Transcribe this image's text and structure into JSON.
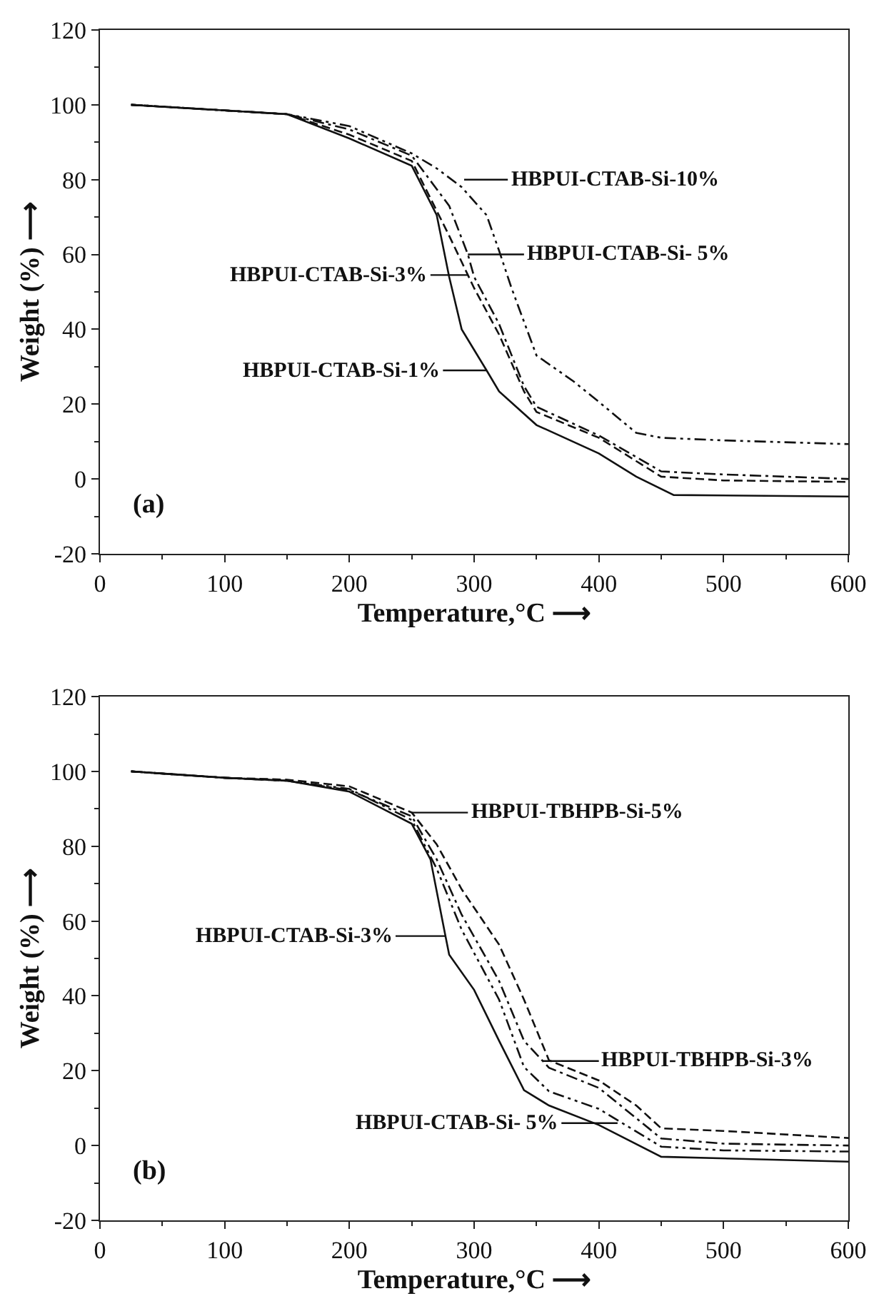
{
  "chart_data": [
    {
      "type": "line",
      "xlabel": "Temperature,°C ⟶",
      "ylabel": "Weight (%) ⟶",
      "xlim": [
        0,
        600
      ],
      "xticks": [
        0,
        100,
        200,
        300,
        400,
        500,
        600
      ],
      "ylim": [
        -20,
        120
      ],
      "yticks": [
        -20,
        0,
        20,
        40,
        60,
        80,
        100,
        120
      ],
      "series": [
        {
          "color": "#111111",
          "line_style": "solid",
          "x": [
            25,
            100,
            150,
            200,
            250,
            270,
            280,
            290,
            300,
            310,
            320,
            350,
            400,
            430,
            460,
            600
          ],
          "values": [
            100,
            98.5,
            97.5,
            91,
            83.7,
            70.5,
            54,
            40,
            34.5,
            29,
            23.4,
            14.4,
            6.8,
            0.6,
            -4.3,
            -4.7
          ]
        },
        {
          "color": "#111111",
          "line_style": "dashed",
          "x": [
            25,
            100,
            150,
            200,
            250,
            280,
            290,
            295,
            300,
            320,
            340,
            350,
            400,
            450,
            500,
            600
          ],
          "values": [
            100,
            98.5,
            97.5,
            92,
            85,
            65,
            58,
            54.5,
            51,
            38.6,
            23.4,
            17.9,
            11,
            0.6,
            -0.4,
            -0.8
          ]
        },
        {
          "color": "#111111",
          "line_style": "dashdot",
          "x": [
            25,
            100,
            150,
            200,
            250,
            280,
            295,
            300,
            320,
            340,
            350,
            400,
            450,
            500,
            600
          ],
          "values": [
            100,
            98.5,
            97.5,
            93.4,
            86.4,
            73,
            60,
            54,
            41.4,
            24.8,
            19.3,
            11.6,
            2,
            1.2,
            0
          ]
        },
        {
          "color": "#111111",
          "line_style": "dashdotdot",
          "x": [
            25,
            100,
            150,
            200,
            250,
            270,
            290,
            310,
            320,
            330,
            350,
            380,
            400,
            430,
            450,
            500,
            600
          ],
          "values": [
            100,
            98.5,
            97.5,
            94.3,
            87,
            83,
            78,
            70.5,
            61,
            51,
            33,
            26,
            20.6,
            12.3,
            11,
            10.3,
            9.3
          ]
        }
      ],
      "annotations": [
        {
          "text": "HBPUI-CTAB-Si-10%",
          "x": 292,
          "y": 80
        },
        {
          "text": "HBPUI-CTAB-Si- 5%",
          "x": 295,
          "y": 60
        },
        {
          "text": "HBPUI-CTAB-Si-3%",
          "x": 295,
          "y": 54.5
        },
        {
          "text": "HBPUI-CTAB-Si-1%",
          "x": 310,
          "y": 29
        },
        "(a)"
      ]
    },
    {
      "type": "line",
      "xlabel": "Temperature,°C ⟶",
      "ylabel": "Weight (%) ⟶",
      "xlim": [
        0,
        600
      ],
      "xticks": [
        0,
        100,
        200,
        300,
        400,
        500,
        600
      ],
      "ylim": [
        -20,
        120
      ],
      "yticks": [
        -20,
        0,
        20,
        40,
        60,
        80,
        100,
        120
      ],
      "series": [
        {
          "color": "#111111",
          "line_style": "solid",
          "x": [
            25,
            100,
            150,
            200,
            250,
            265,
            277,
            280,
            300,
            320,
            340,
            360,
            400,
            450,
            600
          ],
          "values": [
            100,
            98.3,
            97.5,
            94.6,
            86,
            76.5,
            56,
            51,
            41.6,
            28,
            14.8,
            10.7,
            5.5,
            -3,
            -4.3
          ]
        },
        {
          "color": "#111111",
          "line_style": "dashed",
          "x": [
            25,
            100,
            150,
            200,
            250,
            270,
            290,
            320,
            340,
            360,
            400,
            430,
            450,
            500,
            600
          ],
          "values": [
            100,
            98.3,
            97.8,
            96,
            89,
            80.5,
            68.5,
            53.7,
            39,
            22.8,
            17.4,
            10.7,
            4.6,
            3.9,
            2
          ]
        },
        {
          "color": "#111111",
          "line_style": "dashdot",
          "x": [
            25,
            100,
            150,
            200,
            250,
            270,
            290,
            320,
            340,
            355,
            360,
            400,
            450,
            500,
            600
          ],
          "values": [
            100,
            98.3,
            97.5,
            95,
            88,
            76.5,
            61.7,
            44,
            28,
            22.6,
            20.8,
            15.4,
            1.9,
            0.5,
            0
          ]
        },
        {
          "color": "#111111",
          "line_style": "dashdotdot",
          "x": [
            25,
            100,
            150,
            200,
            250,
            270,
            290,
            320,
            340,
            360,
            400,
            450,
            500,
            600
          ],
          "values": [
            100,
            98.3,
            97.5,
            95.3,
            87,
            74,
            57.7,
            39,
            21,
            14.5,
            9.8,
            -0.3,
            -1.3,
            -1.6
          ]
        }
      ],
      "annotations": [
        {
          "text": "HBPUI-TBHPB-Si-5%",
          "x": 250,
          "y": 89
        },
        {
          "text": "HBPUI-CTAB-Si-3%",
          "x": 277,
          "y": 56
        },
        {
          "text": "HBPUI-TBHPB-Si-3%",
          "x": 355,
          "y": 22.6
        },
        {
          "text": "HBPUI-CTAB-Si- 5%",
          "x": 415,
          "y": 6
        },
        "(b)"
      ]
    }
  ]
}
